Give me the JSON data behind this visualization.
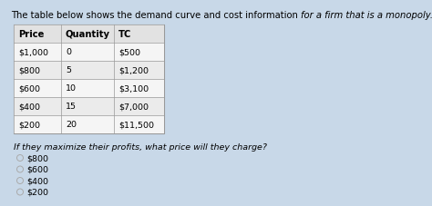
{
  "title_normal": "The table below shows the demand curve and cost information ",
  "title_italic": "for a firm that is a monopoly.",
  "headers": [
    "Price",
    "Quantity",
    "TC"
  ],
  "rows": [
    [
      "$1,000",
      "0",
      "$500"
    ],
    [
      "$800",
      "5",
      "$1,200"
    ],
    [
      "$600",
      "10",
      "$3,100"
    ],
    [
      "$400",
      "15",
      "$7,000"
    ],
    [
      "$200",
      "20",
      "$11,500"
    ]
  ],
  "question": "If they maximize their profits, what price will they charge?",
  "options": [
    "$800",
    "$600",
    "$400",
    "$200"
  ],
  "bg_color": "#c8d8e8",
  "table_bg": "#efefef",
  "header_bg": "#e2e2e2",
  "row_bg_even": "#f5f5f5",
  "row_bg_odd": "#ebebeb",
  "table_border": "#999999",
  "title_fontsize": 7.2,
  "question_fontsize": 6.8,
  "option_fontsize": 6.8,
  "cell_fontsize": 6.8,
  "header_fontsize": 7.2
}
